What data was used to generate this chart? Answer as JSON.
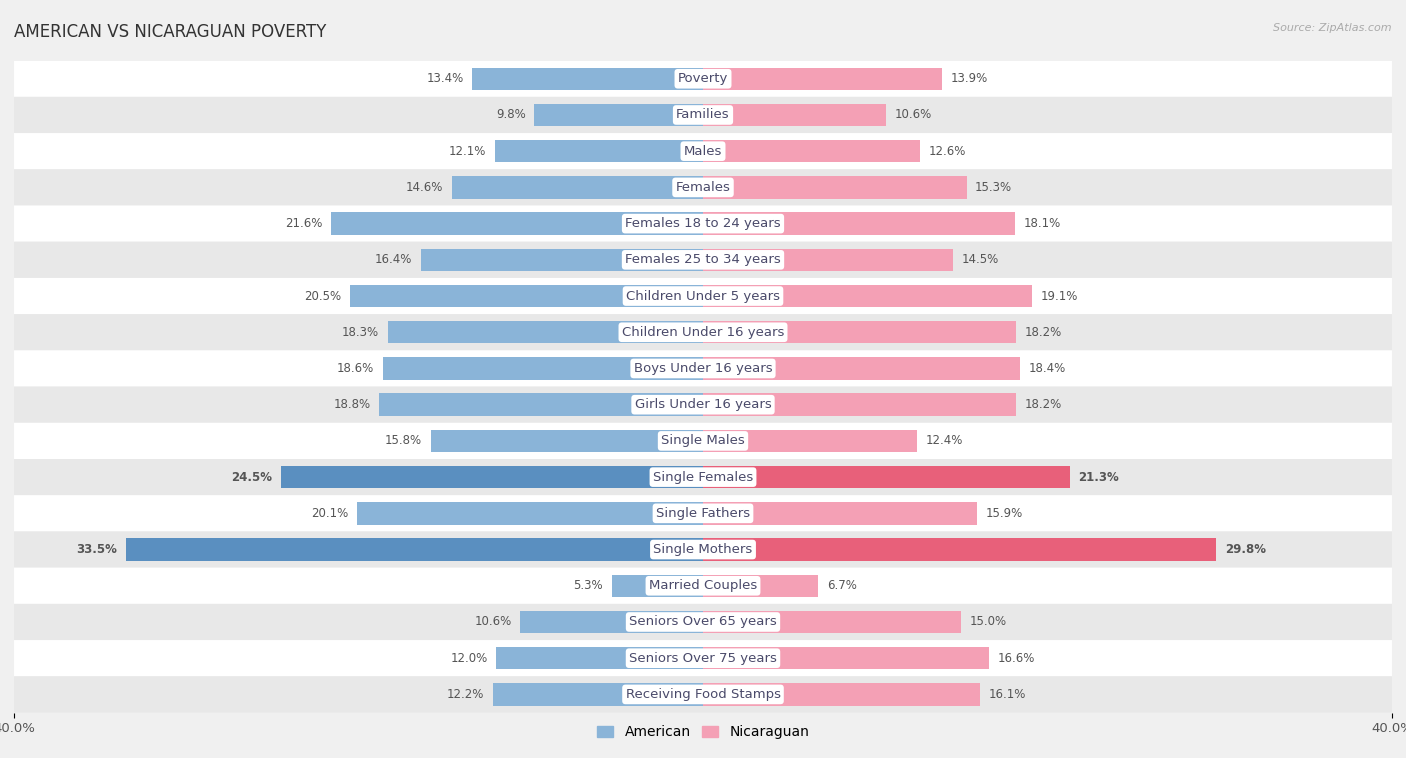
{
  "title": "AMERICAN VS NICARAGUAN POVERTY",
  "source": "Source: ZipAtlas.com",
  "categories": [
    "Poverty",
    "Families",
    "Males",
    "Females",
    "Females 18 to 24 years",
    "Females 25 to 34 years",
    "Children Under 5 years",
    "Children Under 16 years",
    "Boys Under 16 years",
    "Girls Under 16 years",
    "Single Males",
    "Single Females",
    "Single Fathers",
    "Single Mothers",
    "Married Couples",
    "Seniors Over 65 years",
    "Seniors Over 75 years",
    "Receiving Food Stamps"
  ],
  "american_values": [
    13.4,
    9.8,
    12.1,
    14.6,
    21.6,
    16.4,
    20.5,
    18.3,
    18.6,
    18.8,
    15.8,
    24.5,
    20.1,
    33.5,
    5.3,
    10.6,
    12.0,
    12.2
  ],
  "nicaraguan_values": [
    13.9,
    10.6,
    12.6,
    15.3,
    18.1,
    14.5,
    19.1,
    18.2,
    18.4,
    18.2,
    12.4,
    21.3,
    15.9,
    29.8,
    6.7,
    15.0,
    16.6,
    16.1
  ],
  "american_color": "#8ab4d8",
  "nicaraguan_color": "#f4a0b5",
  "american_highlight_color": "#5a8fc0",
  "nicaraguan_highlight_color": "#e8607a",
  "highlight_rows": [
    11,
    13
  ],
  "axis_max": 40.0,
  "bg_color": "#f0f0f0",
  "row_bg_even": "#ffffff",
  "row_bg_odd": "#e8e8e8",
  "bar_height": 0.62,
  "label_fontsize": 9.5,
  "value_fontsize": 8.5,
  "title_fontsize": 12,
  "legend_fontsize": 10
}
